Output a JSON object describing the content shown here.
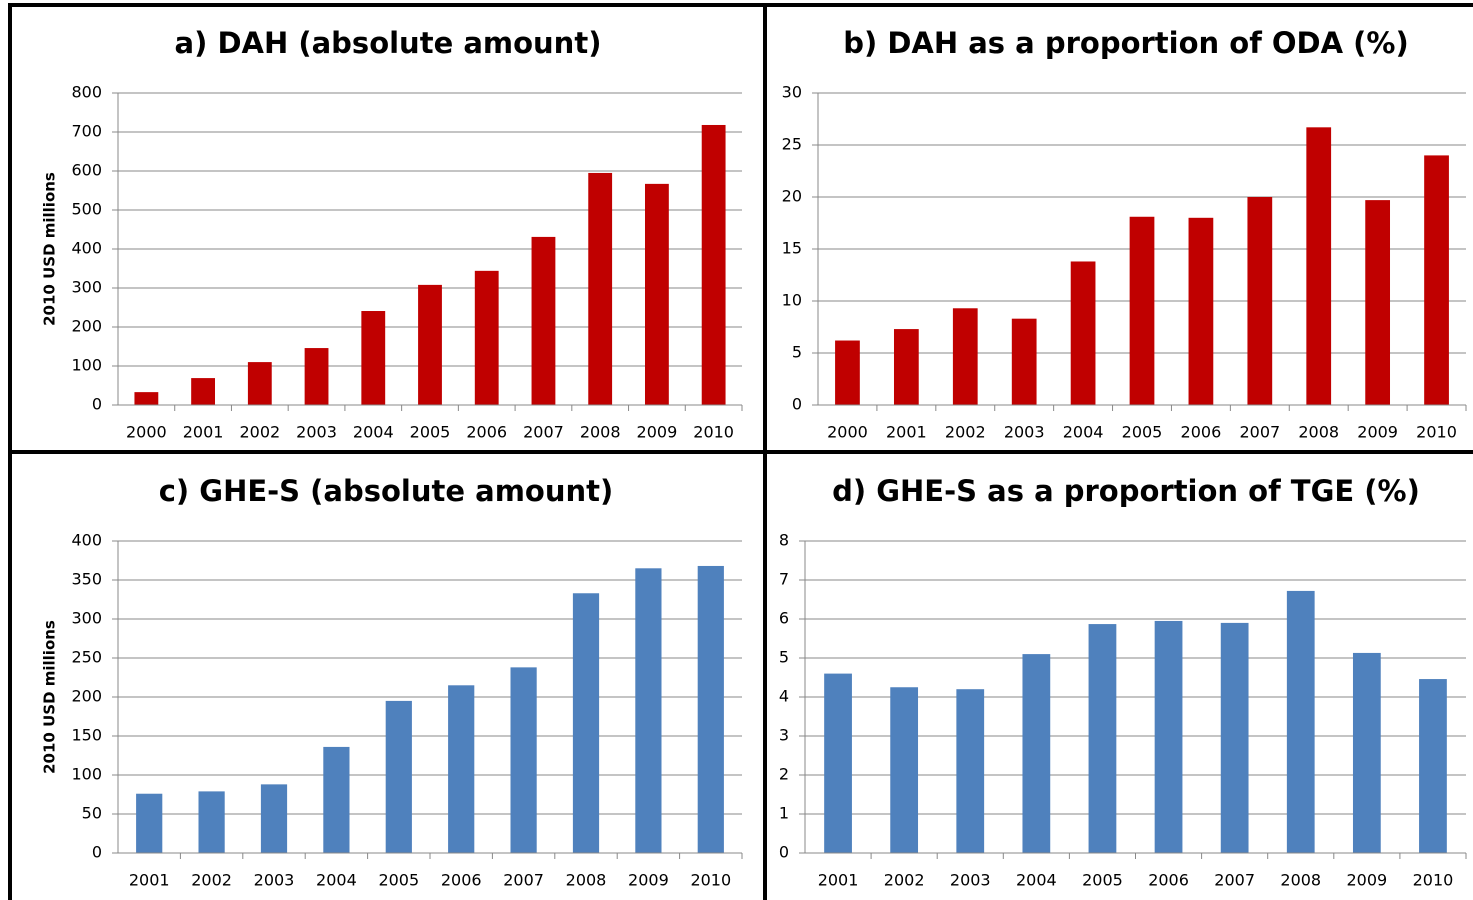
{
  "chart_data": [
    {
      "type": "bar",
      "title": "a) DAH (absolute amount)",
      "ylabel": "2010 USD millions",
      "color": "#c00000",
      "categories": [
        "2000",
        "2001",
        "2002",
        "2003",
        "2004",
        "2005",
        "2006",
        "2007",
        "2008",
        "2009",
        "2010"
      ],
      "values": [
        33,
        69,
        110,
        146,
        241,
        308,
        344,
        431,
        595,
        567,
        718
      ],
      "ylim": [
        0,
        800
      ],
      "yticks": [
        0,
        100,
        200,
        300,
        400,
        500,
        600,
        700,
        800
      ],
      "grid": true
    },
    {
      "type": "bar",
      "title": "b) DAH as a proportion of ODA (%)",
      "color": "#c00000",
      "categories": [
        "2000",
        "2001",
        "2002",
        "2003",
        "2004",
        "2005",
        "2006",
        "2007",
        "2008",
        "2009",
        "2010"
      ],
      "values": [
        6.2,
        7.3,
        9.3,
        8.3,
        13.8,
        18.1,
        18.0,
        20.0,
        26.7,
        19.7,
        24.0
      ],
      "ylim": [
        0,
        30
      ],
      "yticks": [
        0,
        5,
        10,
        15,
        20,
        25,
        30
      ],
      "grid": true
    },
    {
      "type": "bar",
      "title": "c) GHE-S (absolute amount)",
      "ylabel": "2010 USD millions",
      "color": "#4f81bd",
      "categories": [
        "2001",
        "2002",
        "2003",
        "2004",
        "2005",
        "2006",
        "2007",
        "2008",
        "2009",
        "2010"
      ],
      "values": [
        76,
        79,
        88,
        136,
        195,
        215,
        238,
        333,
        365,
        368
      ],
      "ylim": [
        0,
        400
      ],
      "yticks": [
        0,
        50,
        100,
        150,
        200,
        250,
        300,
        350,
        400
      ],
      "grid": true
    },
    {
      "type": "bar",
      "title": "d) GHE-S as a proportion of TGE (%)",
      "color": "#4f81bd",
      "categories": [
        "2001",
        "2002",
        "2003",
        "2004",
        "2005",
        "2006",
        "2007",
        "2008",
        "2009",
        "2010"
      ],
      "values": [
        4.6,
        4.25,
        4.2,
        5.1,
        5.87,
        5.95,
        5.9,
        6.72,
        5.13,
        4.46
      ],
      "ylim": [
        0,
        8
      ],
      "yticks": [
        0,
        1,
        2,
        3,
        4,
        5,
        6,
        7,
        8
      ],
      "grid": true
    }
  ]
}
